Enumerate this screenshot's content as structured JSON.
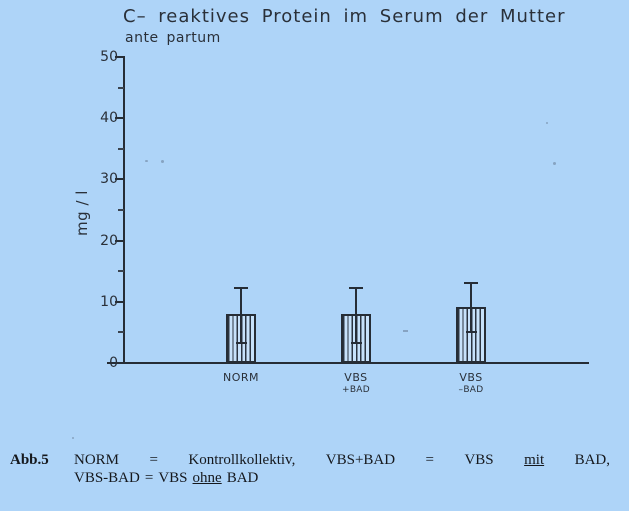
{
  "page": {
    "background_color": "#aed4f8",
    "ink_color": "#262d36"
  },
  "chart_data": {
    "type": "bar",
    "title": "C– reaktives Protein im Serum der Mutter",
    "subtitle": "ante partum",
    "ylabel": "mg / l",
    "xlabel": "",
    "ylim": [
      0,
      50
    ],
    "yticks": [
      0,
      10,
      20,
      30,
      40,
      50
    ],
    "minor_yticks": [
      5,
      15,
      25,
      35,
      45
    ],
    "categories": [
      "NORM",
      "VBS\n+BAD",
      "VBS\n–BAD"
    ],
    "values": [
      8.0,
      8.0,
      9.2
    ],
    "error_low": [
      3.2,
      3.2,
      5.0
    ],
    "error_high": [
      12.2,
      12.2,
      13.0
    ],
    "grid": false,
    "legend": "none",
    "bar_style": "vertical-hatch"
  },
  "caption": {
    "label": "Abb.5",
    "line1_tokens": [
      "NORM",
      "=",
      "Kontrollkollektiv,",
      "VBS+BAD",
      "=",
      "VBS",
      "mit",
      "BAD,"
    ],
    "line1_underlined_index": 6,
    "line2_tokens": [
      "VBS-BAD",
      "=",
      "VBS",
      "ohne",
      "BAD"
    ],
    "line2_underlined_index": 3
  }
}
